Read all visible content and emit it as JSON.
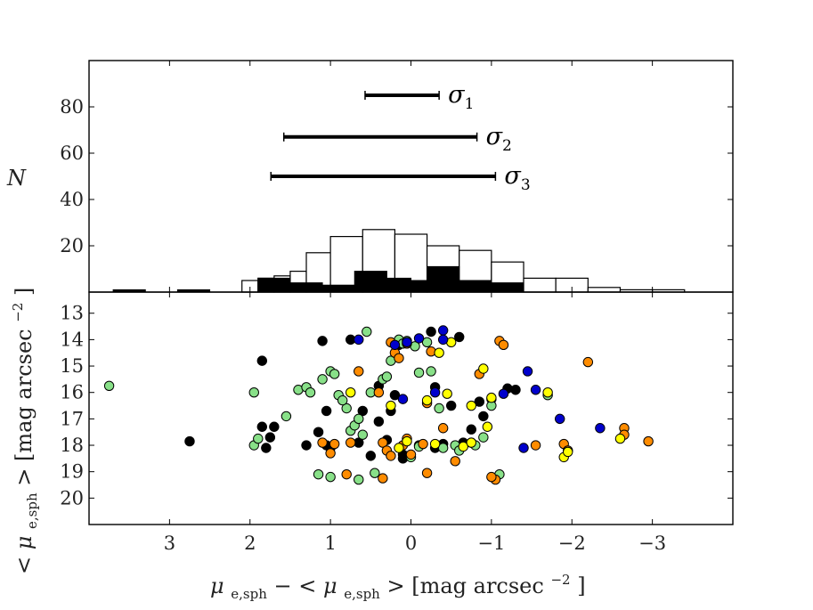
{
  "chart_data": [
    {
      "type": "histogram",
      "panel": "top",
      "ylabel": "N",
      "xlim": [
        4.0,
        -4.0
      ],
      "ylim": [
        0,
        100
      ],
      "y_ticks": [
        20,
        40,
        60,
        80
      ],
      "bin_width": 0.2,
      "open_bars": [
        {
          "x0": 2.1,
          "h": 5
        },
        {
          "x0": 1.9,
          "h": 6
        },
        {
          "x0": 1.7,
          "h": 7
        },
        {
          "x0": 1.5,
          "h": 9
        },
        {
          "x0": 1.3,
          "h": 17
        },
        {
          "x0": 1.0,
          "h": 24
        },
        {
          "x0": 0.6,
          "h": 27
        },
        {
          "x0": 0.2,
          "h": 25
        },
        {
          "x0": -0.2,
          "h": 20
        },
        {
          "x0": -0.6,
          "h": 18
        },
        {
          "x0": -1.0,
          "h": 13
        },
        {
          "x0": -1.4,
          "h": 6
        },
        {
          "x0": -1.8,
          "h": 6
        },
        {
          "x0": -2.2,
          "h": 2
        },
        {
          "x0": -2.6,
          "h": 1
        },
        {
          "x0": -3.0,
          "h": 1
        }
      ],
      "filled_bars": [
        {
          "x0": 3.7,
          "x1": 3.3,
          "h": 1
        },
        {
          "x0": 2.9,
          "x1": 2.5,
          "h": 1
        },
        {
          "x0": 1.9,
          "x1": 1.5,
          "h": 6
        },
        {
          "x0": 1.5,
          "x1": 1.1,
          "h": 4
        },
        {
          "x0": 1.1,
          "x1": 0.7,
          "h": 3
        },
        {
          "x0": 0.7,
          "x1": 0.3,
          "h": 9
        },
        {
          "x0": 0.3,
          "x1": 0.0,
          "h": 6
        },
        {
          "x0": 0.0,
          "x1": -0.2,
          "h": 5
        },
        {
          "x0": -0.2,
          "x1": -0.6,
          "h": 11
        },
        {
          "x0": -0.6,
          "x1": -1.0,
          "h": 5
        },
        {
          "x0": -1.0,
          "x1": -1.4,
          "h": 4
        }
      ],
      "sigma_bars": [
        {
          "label": "σ",
          "sub": "1",
          "x_from": 0.57,
          "x_to": -0.35,
          "y": 85
        },
        {
          "label": "σ",
          "sub": "2",
          "x_from": 1.58,
          "x_to": -0.82,
          "y": 67
        },
        {
          "label": "σ",
          "sub": "3",
          "x_from": 1.74,
          "x_to": -1.05,
          "y": 50
        }
      ]
    },
    {
      "type": "scatter",
      "panel": "bottom",
      "xlabel_main": "μ",
      "xlabel_sub": "e,sph",
      "xlabel_mid": "− < ",
      "xlabel_end": " >  [mag arcsec",
      "xlabel_exp": "−2",
      "xlabel_close": "]",
      "ylabel_left": "< ",
      "ylabel_main": "μ",
      "ylabel_sub": "e,sph",
      "ylabel_end": " >  [mag arcsec",
      "ylabel_exp": "−2",
      "ylabel_close": "]",
      "xlim": [
        4.0,
        -4.0
      ],
      "ylim": [
        21,
        12.2
      ],
      "x_ticks": [
        3,
        2,
        1,
        0,
        -1,
        -2,
        -3
      ],
      "x_tick_labels": [
        "3",
        "2",
        "1",
        "0",
        "−1",
        "−2",
        "−3"
      ],
      "y_ticks": [
        13,
        14,
        15,
        16,
        17,
        18,
        19,
        20
      ],
      "colors": {
        "black": "#000000",
        "green": "#88e088",
        "orange": "#ff8c00",
        "yellow": "#ffff00",
        "blue": "#0000cc"
      },
      "series": [
        {
          "name": "black",
          "points": [
            [
              1.1,
              14.05
            ],
            [
              0.75,
              14.0
            ],
            [
              -0.25,
              13.7
            ],
            [
              -0.6,
              13.9
            ],
            [
              0.15,
              14.2
            ],
            [
              0.4,
              15.75
            ],
            [
              -0.3,
              15.8
            ],
            [
              0.25,
              16.7
            ],
            [
              0.6,
              16.7
            ],
            [
              1.05,
              16.7
            ],
            [
              0.4,
              17.1
            ],
            [
              0.2,
              16.1
            ],
            [
              -0.5,
              16.5
            ],
            [
              -0.85,
              16.35
            ],
            [
              -1.0,
              16.25
            ],
            [
              -1.2,
              15.85
            ],
            [
              -1.3,
              15.9
            ],
            [
              -0.75,
              17.4
            ],
            [
              -0.9,
              16.9
            ],
            [
              0.3,
              17.8
            ],
            [
              0.1,
              18.5
            ],
            [
              -0.3,
              18.1
            ],
            [
              -0.4,
              17.95
            ],
            [
              -0.65,
              17.9
            ],
            [
              0.5,
              18.4
            ],
            [
              0.65,
              17.9
            ],
            [
              1.0,
              18.1
            ],
            [
              1.05,
              18.0
            ],
            [
              1.15,
              17.5
            ],
            [
              1.7,
              17.3
            ],
            [
              1.75,
              17.7
            ],
            [
              1.8,
              18.1
            ],
            [
              1.85,
              17.3
            ],
            [
              1.85,
              14.8
            ],
            [
              2.75,
              17.85
            ],
            [
              1.3,
              18.0
            ],
            [
              0.1,
              18.35
            ],
            [
              -0.1,
              18.0
            ]
          ]
        },
        {
          "name": "green",
          "points": [
            [
              3.75,
              15.75
            ],
            [
              1.95,
              16.0
            ],
            [
              1.95,
              18.0
            ],
            [
              1.4,
              15.9
            ],
            [
              1.3,
              15.8
            ],
            [
              1.25,
              16.0
            ],
            [
              1.1,
              15.5
            ],
            [
              1.0,
              15.2
            ],
            [
              0.95,
              15.3
            ],
            [
              0.9,
              16.1
            ],
            [
              0.8,
              16.6
            ],
            [
              0.75,
              17.45
            ],
            [
              0.7,
              17.25
            ],
            [
              0.65,
              17.0
            ],
            [
              0.6,
              17.6
            ],
            [
              0.5,
              16.0
            ],
            [
              0.35,
              15.5
            ],
            [
              0.3,
              15.4
            ],
            [
              0.25,
              14.8
            ],
            [
              0.15,
              14.0
            ],
            [
              0.1,
              14.15
            ],
            [
              -0.05,
              14.25
            ],
            [
              -0.1,
              15.25
            ],
            [
              -0.2,
              14.1
            ],
            [
              -0.25,
              15.2
            ],
            [
              -0.35,
              16.6
            ],
            [
              -0.55,
              18.0
            ],
            [
              -0.75,
              17.9
            ],
            [
              -0.8,
              18.0
            ],
            [
              -0.9,
              17.7
            ],
            [
              -1.0,
              16.5
            ],
            [
              -1.1,
              19.1
            ],
            [
              0.45,
              19.05
            ],
            [
              0.65,
              19.3
            ],
            [
              1.15,
              19.1
            ],
            [
              1.9,
              17.75
            ],
            [
              1.55,
              16.9
            ],
            [
              0.85,
              16.3
            ],
            [
              -0.1,
              18.05
            ],
            [
              0.0,
              18.45
            ],
            [
              -0.4,
              18.1
            ],
            [
              -0.6,
              18.2
            ],
            [
              0.05,
              14.05
            ],
            [
              -1.7,
              16.1
            ],
            [
              0.55,
              13.7
            ],
            [
              1.0,
              19.2
            ]
          ]
        },
        {
          "name": "orange",
          "points": [
            [
              -1.1,
              14.05
            ],
            [
              -1.15,
              14.2
            ],
            [
              0.05,
              14.15
            ],
            [
              0.25,
              14.1
            ],
            [
              0.2,
              14.5
            ],
            [
              0.15,
              14.7
            ],
            [
              -0.25,
              14.45
            ],
            [
              -0.85,
              15.3
            ],
            [
              -2.2,
              14.85
            ],
            [
              -1.55,
              18.0
            ],
            [
              -1.9,
              17.95
            ],
            [
              -1.95,
              18.2
            ],
            [
              -2.65,
              17.35
            ],
            [
              -2.65,
              17.6
            ],
            [
              -2.95,
              17.85
            ],
            [
              -1.05,
              19.3
            ],
            [
              -1.0,
              19.2
            ],
            [
              -0.4,
              17.35
            ],
            [
              0.05,
              17.75
            ],
            [
              0.1,
              18.0
            ],
            [
              0.35,
              17.9
            ],
            [
              0.75,
              17.9
            ],
            [
              1.0,
              18.3
            ],
            [
              0.95,
              17.95
            ],
            [
              1.1,
              17.9
            ],
            [
              0.3,
              18.2
            ],
            [
              -0.2,
              19.05
            ],
            [
              0.8,
              19.1
            ],
            [
              0.25,
              18.4
            ],
            [
              -0.55,
              18.6
            ],
            [
              0.65,
              15.2
            ],
            [
              0.4,
              16.0
            ],
            [
              -0.2,
              16.4
            ],
            [
              -0.15,
              17.95
            ],
            [
              0.35,
              19.25
            ],
            [
              0.0,
              18.35
            ]
          ]
        },
        {
          "name": "yellow",
          "points": [
            [
              -0.35,
              14.5
            ],
            [
              -0.5,
              14.1
            ],
            [
              -0.2,
              16.3
            ],
            [
              -0.45,
              16.05
            ],
            [
              -0.75,
              16.5
            ],
            [
              -0.9,
              15.1
            ],
            [
              -1.0,
              16.2
            ],
            [
              -1.7,
              16.0
            ],
            [
              -1.9,
              18.45
            ],
            [
              -1.95,
              18.25
            ],
            [
              -2.6,
              17.75
            ],
            [
              -0.95,
              17.3
            ],
            [
              -0.65,
              18.05
            ],
            [
              -0.75,
              17.9
            ],
            [
              0.25,
              16.5
            ],
            [
              0.75,
              16.0
            ],
            [
              0.05,
              17.85
            ],
            [
              -0.3,
              17.95
            ],
            [
              0.15,
              18.1
            ]
          ]
        },
        {
          "name": "blue",
          "points": [
            [
              -0.4,
              13.65
            ],
            [
              -0.4,
              14.0
            ],
            [
              -0.1,
              13.95
            ],
            [
              0.05,
              14.1
            ],
            [
              0.2,
              14.2
            ],
            [
              0.65,
              14.0
            ],
            [
              -1.45,
              15.2
            ],
            [
              -1.55,
              15.9
            ],
            [
              -1.15,
              16.05
            ],
            [
              -1.85,
              17.0
            ],
            [
              -2.35,
              17.35
            ],
            [
              -1.4,
              18.1
            ],
            [
              0.1,
              16.25
            ],
            [
              -0.3,
              16.0
            ]
          ]
        }
      ]
    }
  ]
}
